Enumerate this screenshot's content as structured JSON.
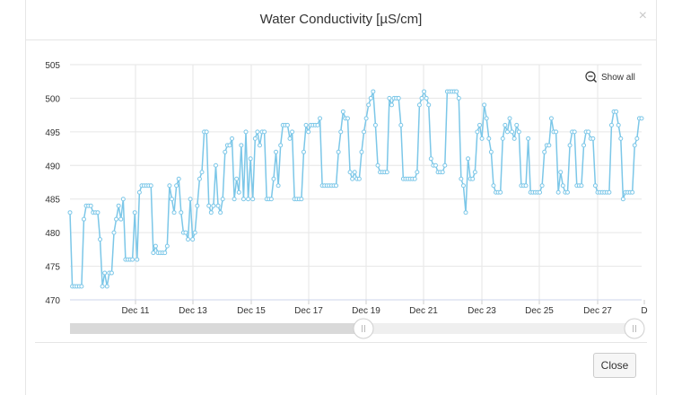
{
  "modal": {
    "title": "Water Conductivity [µS/cm]",
    "close_x": "×",
    "close_button": "Close"
  },
  "reset_zoom": {
    "label": "Show all",
    "icon": "zoom-out-icon"
  },
  "colors": {
    "series": "#7cc7e8",
    "grid": "#e6e6e6",
    "nav_fill": "#d9d9d9",
    "nav_track": "#efefef"
  },
  "chart_data": {
    "type": "line",
    "title": "Water Conductivity [µS/cm]",
    "xlabel": "",
    "ylabel": "",
    "ylim": [
      470,
      505
    ],
    "yticks": [
      470,
      475,
      480,
      485,
      490,
      495,
      500,
      505
    ],
    "xticks": [
      "Dec 11",
      "Dec 13",
      "Dec 15",
      "Dec 17",
      "Dec 19",
      "Dec 21",
      "Dec 23",
      "Dec 25",
      "Dec 27",
      "D"
    ],
    "x_start": "Dec 9",
    "x_end": "Dec 28",
    "grid": true,
    "legend": "none",
    "series": [
      {
        "values": [
          483,
          472,
          472,
          472,
          472,
          472,
          482,
          484,
          484,
          484,
          483,
          483,
          483,
          479,
          472,
          474,
          472,
          474,
          474,
          480,
          482,
          484,
          482,
          485,
          476,
          476,
          476,
          476,
          483,
          476,
          486,
          487,
          487,
          487,
          487,
          487,
          477,
          478,
          477,
          477,
          477,
          477,
          478,
          487,
          485,
          483,
          487,
          488,
          483,
          480,
          480,
          479,
          485,
          479,
          480,
          484,
          488,
          489,
          495,
          495,
          484,
          483,
          484,
          490,
          484,
          483,
          485,
          492,
          493,
          493,
          494,
          485,
          488,
          486,
          493,
          485,
          495,
          485,
          491,
          485,
          494,
          495,
          493,
          495,
          495,
          485,
          485,
          485,
          488,
          492,
          487,
          493,
          496,
          496,
          496,
          494,
          495,
          485,
          485,
          485,
          485,
          492,
          496,
          495,
          496,
          496,
          496,
          496,
          497,
          487,
          487,
          487,
          487,
          487,
          487,
          487,
          492,
          495,
          498,
          497,
          497,
          489,
          488,
          489,
          488,
          488,
          492,
          495,
          497,
          499,
          500,
          501,
          496,
          490,
          489,
          489,
          489,
          489,
          500,
          499,
          500,
          500,
          500,
          496,
          488,
          488,
          488,
          488,
          488,
          488,
          489,
          499,
          500,
          501,
          500,
          499,
          491,
          490,
          490,
          489,
          489,
          489,
          490,
          501,
          501,
          501,
          501,
          501,
          500,
          488,
          487,
          483,
          491,
          488,
          488,
          489,
          495,
          496,
          494,
          499,
          497,
          494,
          492,
          487,
          486,
          486,
          486,
          494,
          496,
          495,
          497,
          495,
          494,
          496,
          495,
          487,
          487,
          487,
          494,
          486,
          486,
          486,
          486,
          486,
          487,
          492,
          493,
          493,
          497,
          495,
          495,
          486,
          489,
          487,
          486,
          486,
          493,
          495,
          495,
          487,
          487,
          487,
          493,
          495,
          495,
          494,
          494,
          487,
          486,
          486,
          486,
          486,
          486,
          486,
          496,
          498,
          498,
          496,
          494,
          485,
          486,
          486,
          486,
          486,
          493,
          494,
          497,
          497
        ]
      }
    ]
  }
}
